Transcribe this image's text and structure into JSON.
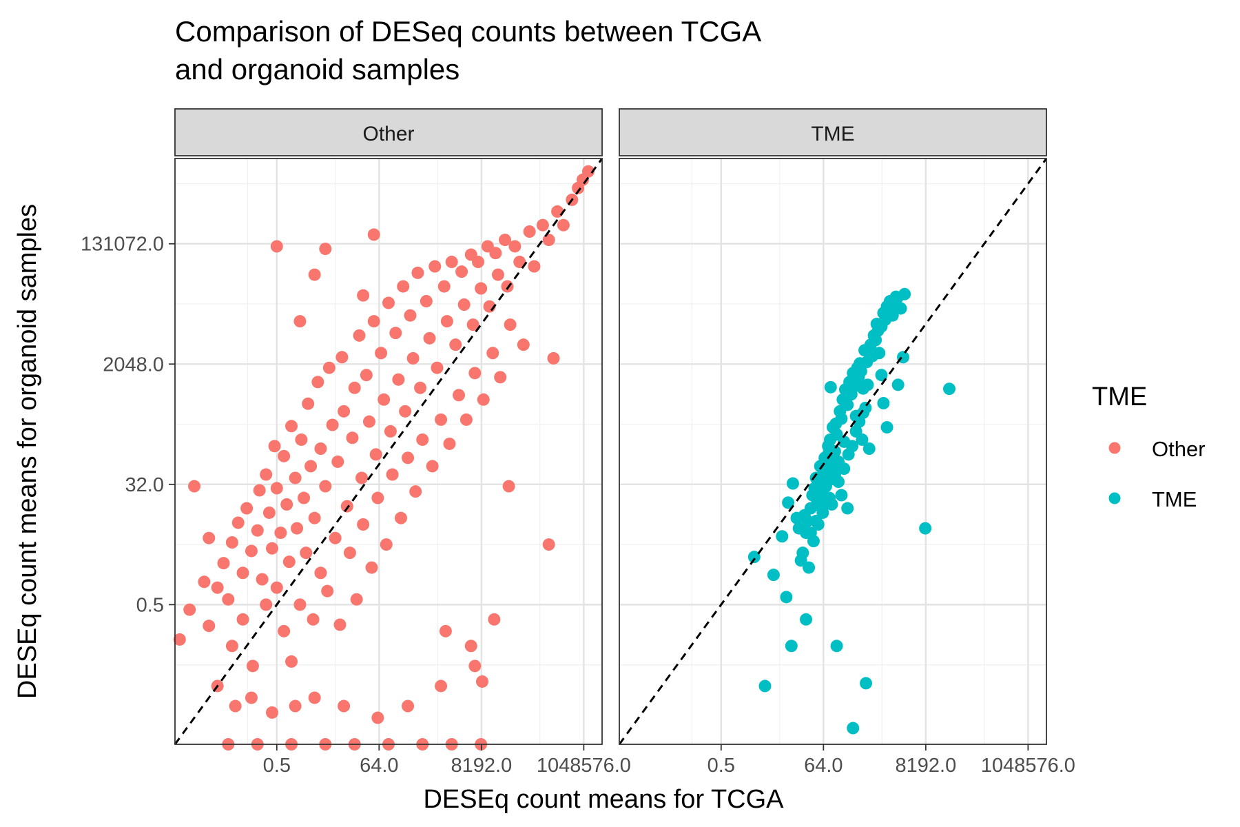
{
  "chart_data": {
    "type": "scatter",
    "title_lines": [
      "Comparison of DESeq counts between TCGA",
      "and organoid samples"
    ],
    "xlabel": "DESEq count means for TCGA",
    "ylabel": "DESEq count means for organoid samples",
    "x_scale": "log2",
    "y_scale": "log2",
    "xlim": [
      0.004,
      2500000
    ],
    "ylim": [
      0.004,
      2500000
    ],
    "x_ticks": [
      0.5,
      64,
      8192,
      1048576
    ],
    "x_tick_labels": [
      "0.5",
      "64.0",
      "8192.0",
      "1048576.0"
    ],
    "y_ticks": [
      0.5,
      32,
      2048,
      131072
    ],
    "y_tick_labels": [
      "0.5",
      "32.0",
      "2048.0",
      "131072.0"
    ],
    "reference_line": "y = x (dashed, black)",
    "grid": true,
    "facets": [
      "Other",
      "TME"
    ],
    "legend": {
      "title": "TME",
      "position": "right",
      "entries": [
        {
          "label": "Other",
          "color": "#F8766D"
        },
        {
          "label": "TME",
          "color": "#00BFC4"
        }
      ]
    },
    "series": [
      {
        "name": "Other",
        "color": "#F8766D",
        "points": [
          [
            0.008,
            0.42
          ],
          [
            0.016,
            1.1
          ],
          [
            0.02,
            0.24
          ],
          [
            0.03,
            0.9
          ],
          [
            0.04,
            2.1
          ],
          [
            0.05,
            0.6
          ],
          [
            0.06,
            4.3
          ],
          [
            0.06,
            0.12
          ],
          [
            0.08,
            8.5
          ],
          [
            0.1,
            1.5
          ],
          [
            0.1,
            0.3
          ],
          [
            0.12,
            14
          ],
          [
            0.15,
            3.2
          ],
          [
            0.16,
            0.06
          ],
          [
            0.2,
            6.5
          ],
          [
            0.22,
            26
          ],
          [
            0.25,
            1.2
          ],
          [
            0.3,
            45
          ],
          [
            0.3,
            0.5
          ],
          [
            0.35,
            12
          ],
          [
            0.4,
            3.5
          ],
          [
            0.45,
            120
          ],
          [
            0.5,
            0.9
          ],
          [
            0.5,
            28
          ],
          [
            0.6,
            6
          ],
          [
            0.7,
            0.2
          ],
          [
            0.7,
            85
          ],
          [
            0.8,
            16
          ],
          [
            0.9,
            2.2
          ],
          [
            1,
            240
          ],
          [
            1,
            0.07
          ],
          [
            1.2,
            40
          ],
          [
            1.3,
            7
          ],
          [
            1.5,
            0.5
          ],
          [
            1.6,
            150
          ],
          [
            1.8,
            20
          ],
          [
            2,
            3
          ],
          [
            2.2,
            520
          ],
          [
            2.5,
            60
          ],
          [
            2.8,
            0.3
          ],
          [
            3,
            10
          ],
          [
            3.5,
            1100
          ],
          [
            4,
            110
          ],
          [
            4,
            1.5
          ],
          [
            5,
            30
          ],
          [
            5.5,
            0.8
          ],
          [
            6,
            1800
          ],
          [
            7,
            250
          ],
          [
            8,
            5
          ],
          [
            9,
            70
          ],
          [
            10,
            0.25
          ],
          [
            11,
            2600
          ],
          [
            12,
            400
          ],
          [
            14,
            15
          ],
          [
            16,
            3
          ],
          [
            18,
            160
          ],
          [
            20,
            900
          ],
          [
            22,
            0.6
          ],
          [
            25,
            5500
          ],
          [
            28,
            40
          ],
          [
            30,
            8
          ],
          [
            35,
            1400
          ],
          [
            40,
            280
          ],
          [
            45,
            1.8
          ],
          [
            50,
            9000
          ],
          [
            55,
            90
          ],
          [
            60,
            20
          ],
          [
            70,
            3000
          ],
          [
            80,
            600
          ],
          [
            90,
            4
          ],
          [
            100,
            17000
          ],
          [
            110,
            200
          ],
          [
            120,
            45
          ],
          [
            140,
            6000
          ],
          [
            160,
            1200
          ],
          [
            180,
            10
          ],
          [
            200,
            30000
          ],
          [
            220,
            400
          ],
          [
            250,
            80
          ],
          [
            280,
            11000
          ],
          [
            320,
            2500
          ],
          [
            360,
            25
          ],
          [
            400,
            48000
          ],
          [
            450,
            900
          ],
          [
            500,
            150
          ],
          [
            600,
            18000
          ],
          [
            700,
            5000
          ],
          [
            800,
            60
          ],
          [
            900,
            60000
          ],
          [
            1000,
            1800
          ],
          [
            1200,
            300
          ],
          [
            1400,
            30000
          ],
          [
            1600,
            9000
          ],
          [
            1800,
            130
          ],
          [
            2000,
            70000
          ],
          [
            2400,
            4000
          ],
          [
            2800,
            700
          ],
          [
            3200,
            50000
          ],
          [
            3600,
            16000
          ],
          [
            4000,
            300
          ],
          [
            5000,
            90000
          ],
          [
            5500,
            8000
          ],
          [
            6000,
            1500
          ],
          [
            7000,
            70000
          ],
          [
            8000,
            28000
          ],
          [
            9000,
            600
          ],
          [
            11000,
            120000
          ],
          [
            12000,
            15000
          ],
          [
            14000,
            3000
          ],
          [
            16000,
            95000
          ],
          [
            18000,
            45000
          ],
          [
            20000,
            1300
          ],
          [
            25000,
            150000
          ],
          [
            28000,
            30000
          ],
          [
            32000,
            8000
          ],
          [
            40000,
            120000
          ],
          [
            50000,
            70000
          ],
          [
            60000,
            4000
          ],
          [
            80000,
            200000
          ],
          [
            100000,
            60000
          ],
          [
            150000,
            250000
          ],
          [
            200000,
            150000
          ],
          [
            300000,
            400000
          ],
          [
            400000,
            250000
          ],
          [
            600000,
            600000
          ],
          [
            800000,
            900000
          ],
          [
            1000000,
            1200000
          ],
          [
            1300000,
            1600000
          ],
          [
            0.5,
            120000
          ],
          [
            5,
            110000
          ],
          [
            50,
            180000
          ],
          [
            3,
            45000
          ],
          [
            30,
            22000
          ],
          [
            1.5,
            9000
          ],
          [
            250000,
            2500
          ],
          [
            200000,
            4
          ],
          [
            0.01,
            30
          ],
          [
            0.02,
            5
          ],
          [
            0.05,
            0.004
          ],
          [
            0.2,
            0.004
          ],
          [
            1,
            0.004
          ],
          [
            5,
            0.004
          ],
          [
            20,
            0.004
          ],
          [
            100,
            0.004
          ],
          [
            500,
            0.004
          ],
          [
            2000,
            0.004
          ],
          [
            8000,
            0.004
          ],
          [
            8500,
            0.035
          ],
          [
            0.005,
            0.15
          ],
          [
            1500,
            0.2
          ],
          [
            5000,
            0.12
          ],
          [
            30000,
            30
          ],
          [
            0.03,
            0.03
          ],
          [
            0.07,
            0.015
          ],
          [
            0.15,
            0.02
          ],
          [
            0.4,
            0.012
          ],
          [
            1.2,
            0.015
          ],
          [
            3,
            0.02
          ],
          [
            12,
            0.015
          ],
          [
            60,
            0.01
          ],
          [
            250,
            0.015
          ],
          [
            1200,
            0.03
          ],
          [
            6000,
            0.06
          ],
          [
            15000,
            0.3
          ]
        ]
      },
      {
        "name": "TME",
        "color": "#00BFC4",
        "points": [
          [
            90,
            920
          ],
          [
            2.4,
            2.6
          ],
          [
            11,
            0.65
          ],
          [
            28,
            0.3
          ],
          [
            4,
            0.03
          ],
          [
            120,
            0.12
          ],
          [
            260,
            0.007
          ],
          [
            480,
            0.033
          ],
          [
            14,
            0.12
          ],
          [
            6,
            1.4
          ],
          [
            9,
            5.3
          ],
          [
            12,
            17
          ],
          [
            15,
            33
          ],
          [
            18,
            10
          ],
          [
            20,
            7
          ],
          [
            22,
            2.3
          ],
          [
            24,
            3
          ],
          [
            26,
            11
          ],
          [
            28,
            6
          ],
          [
            30,
            9
          ],
          [
            32,
            1.8
          ],
          [
            35,
            14
          ],
          [
            38,
            22
          ],
          [
            40,
            4.5
          ],
          [
            42,
            28
          ],
          [
            45,
            40
          ],
          [
            48,
            18
          ],
          [
            50,
            8
          ],
          [
            55,
            60
          ],
          [
            58,
            25
          ],
          [
            60,
            35
          ],
          [
            62,
            12
          ],
          [
            65,
            50
          ],
          [
            68,
            80
          ],
          [
            70,
            19
          ],
          [
            72,
            30
          ],
          [
            75,
            45
          ],
          [
            80,
            120
          ],
          [
            82,
            65
          ],
          [
            85,
            20
          ],
          [
            88,
            150
          ],
          [
            90,
            38
          ],
          [
            95,
            75
          ],
          [
            100,
            230
          ],
          [
            105,
            55
          ],
          [
            110,
            100
          ],
          [
            115,
            260
          ],
          [
            120,
            180
          ],
          [
            130,
            70
          ],
          [
            140,
            400
          ],
          [
            150,
            310
          ],
          [
            160,
            600
          ],
          [
            170,
            140
          ],
          [
            180,
            850
          ],
          [
            200,
            500
          ],
          [
            220,
            1100
          ],
          [
            240,
            720
          ],
          [
            260,
            1500
          ],
          [
            280,
            950
          ],
          [
            300,
            340
          ],
          [
            320,
            1800
          ],
          [
            340,
            1300
          ],
          [
            360,
            2100
          ],
          [
            380,
            1600
          ],
          [
            400,
            150
          ],
          [
            420,
            880
          ],
          [
            450,
            3300
          ],
          [
            500,
            2200
          ],
          [
            520,
            1000
          ],
          [
            560,
            110
          ],
          [
            600,
            4000
          ],
          [
            650,
            2700
          ],
          [
            700,
            5500
          ],
          [
            760,
            4700
          ],
          [
            800,
            8200
          ],
          [
            850,
            6500
          ],
          [
            900,
            3000
          ],
          [
            1000,
            7500
          ],
          [
            1100,
            12000
          ],
          [
            1200,
            9500
          ],
          [
            1300,
            15000
          ],
          [
            1500,
            18000
          ],
          [
            1600,
            13000
          ],
          [
            1700,
            11000
          ],
          [
            1800,
            17000
          ],
          [
            2100,
            20000
          ],
          [
            2500,
            14000
          ],
          [
            3000,
            23000
          ],
          [
            1100,
            530
          ],
          [
            1300,
            230
          ],
          [
            2000,
            21000
          ],
          [
            1000,
            1400
          ],
          [
            2200,
            1000
          ],
          [
            2800,
            2600
          ],
          [
            25000,
            870
          ],
          [
            8000,
            7
          ],
          [
            200,
            14
          ],
          [
            150,
            22
          ],
          [
            80,
            90
          ],
          [
            60,
            14
          ],
          [
            45,
            9
          ],
          [
            35,
            6
          ],
          [
            95,
            16
          ],
          [
            110,
            45
          ],
          [
            130,
            35
          ],
          [
            170,
            55
          ],
          [
            210,
            90
          ],
          [
            250,
            120
          ],
          [
            300,
            200
          ],
          [
            350,
            280
          ],
          [
            420,
            380
          ],
          [
            470,
            450
          ]
        ]
      }
    ]
  }
}
